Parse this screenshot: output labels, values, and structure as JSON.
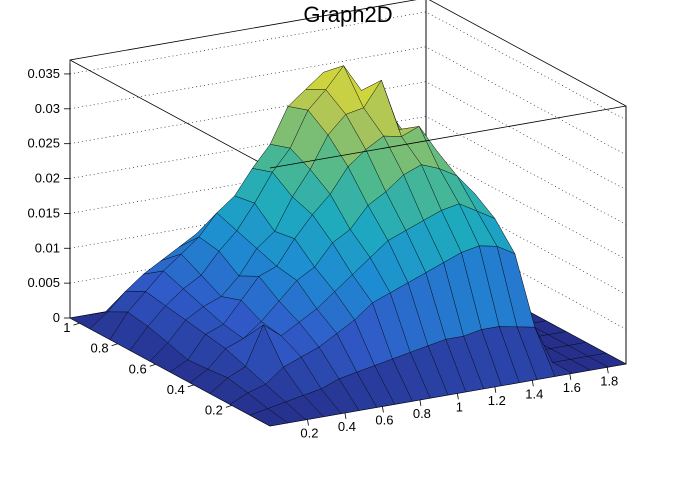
{
  "chart_data": {
    "type": "surface",
    "title": "Graph2D",
    "xlabel": "",
    "ylabel": "",
    "zlabel": "",
    "xlim": [
      0,
      1.9
    ],
    "ylim": [
      0,
      1.05
    ],
    "zlim": [
      0,
      0.037
    ],
    "x_ticks": [
      "0.2",
      "0.4",
      "0.6",
      "0.8",
      "1",
      "1.2",
      "1.4",
      "1.6",
      "1.8"
    ],
    "y_ticks": [
      "0.2",
      "0.4",
      "0.6",
      "0.8",
      "1"
    ],
    "z_ticks": [
      "0",
      "0.005",
      "0.01",
      "0.015",
      "0.02",
      "0.025",
      "0.03",
      "0.035"
    ],
    "x_tick_values": [
      0.2,
      0.4,
      0.6,
      0.8,
      1.0,
      1.2,
      1.4,
      1.6,
      1.8
    ],
    "y_tick_values": [
      0.2,
      0.4,
      0.6,
      0.8,
      1.0
    ],
    "z_tick_values": [
      0,
      0.005,
      0.01,
      0.015,
      0.02,
      0.025,
      0.03,
      0.035
    ],
    "grid": true,
    "colormap": "viridis",
    "colors": {
      "low": "#26308c",
      "mid": "#1fa5c0",
      "high": "#f5e81c"
    },
    "grid_x": [
      0.0,
      0.095,
      0.19,
      0.285,
      0.38,
      0.475,
      0.57,
      0.665,
      0.76,
      0.855,
      0.95,
      1.045,
      1.14,
      1.235,
      1.33,
      1.425,
      1.52,
      1.615,
      1.71,
      1.805,
      1.9
    ],
    "grid_y": [
      0.0,
      0.105,
      0.21,
      0.315,
      0.42,
      0.525,
      0.63,
      0.735,
      0.84,
      0.945,
      1.05
    ],
    "z": [
      [
        0.0,
        0.0,
        0.0,
        0.0,
        0.0,
        0.0,
        0.0,
        0.0,
        0.0,
        0.0,
        0.0
      ],
      [
        0.0,
        0.0005,
        0.0012,
        0.0018,
        0.0015,
        0.0013,
        0.0022,
        0.003,
        0.0035,
        0.002,
        0.0
      ],
      [
        0.0,
        0.001,
        0.002,
        0.003,
        0.004,
        0.0045,
        0.005,
        0.0055,
        0.006,
        0.0045,
        0.0
      ],
      [
        0.0,
        0.0015,
        0.004,
        0.0085,
        0.005,
        0.0055,
        0.0065,
        0.0075,
        0.0085,
        0.0065,
        0.0
      ],
      [
        0.0,
        0.002,
        0.005,
        0.0065,
        0.007,
        0.0085,
        0.0075,
        0.009,
        0.0105,
        0.008,
        0.0
      ],
      [
        0.0,
        0.003,
        0.006,
        0.008,
        0.0095,
        0.0115,
        0.01,
        0.012,
        0.0125,
        0.0095,
        0.0
      ],
      [
        0.0,
        0.0035,
        0.0075,
        0.0095,
        0.012,
        0.0125,
        0.0135,
        0.0145,
        0.0155,
        0.011,
        0.0
      ],
      [
        0.0,
        0.004,
        0.009,
        0.0115,
        0.0135,
        0.016,
        0.0155,
        0.018,
        0.0175,
        0.012,
        0.0
      ],
      [
        0.0,
        0.0045,
        0.011,
        0.0135,
        0.0165,
        0.019,
        0.02,
        0.022,
        0.021,
        0.0135,
        0.0
      ],
      [
        0.0,
        0.005,
        0.012,
        0.0155,
        0.018,
        0.0215,
        0.0235,
        0.025,
        0.024,
        0.016,
        0.0
      ],
      [
        0.0,
        0.0055,
        0.013,
        0.0175,
        0.021,
        0.025,
        0.028,
        0.03,
        0.029,
        0.019,
        0.0
      ],
      [
        0.0,
        0.006,
        0.014,
        0.0185,
        0.0225,
        0.027,
        0.0305,
        0.0325,
        0.031,
        0.02,
        0.0
      ],
      [
        0.0,
        0.006,
        0.015,
        0.0195,
        0.0245,
        0.0285,
        0.031,
        0.0355,
        0.033,
        0.021,
        0.0
      ],
      [
        0.0,
        0.0065,
        0.016,
        0.0205,
        0.0255,
        0.028,
        0.0345,
        0.0315,
        0.03,
        0.02,
        0.0
      ],
      [
        0.0,
        0.0065,
        0.0165,
        0.021,
        0.0245,
        0.029,
        0.027,
        0.03,
        0.0265,
        0.018,
        0.0
      ],
      [
        0.0,
        0.006,
        0.016,
        0.0195,
        0.023,
        0.025,
        0.0235,
        0.026,
        0.022,
        0.015,
        0.0
      ],
      [
        0.0,
        0.0055,
        0.0145,
        0.018,
        0.02,
        0.021,
        0.0195,
        0.021,
        0.0175,
        0.011,
        0.0
      ],
      [
        0.0,
        0.0,
        0.0,
        0.0,
        0.0,
        0.0,
        0.0,
        0.0,
        0.0,
        0.0,
        0.0
      ],
      [
        0.0,
        0.0,
        0.0,
        0.0,
        0.0,
        0.0,
        0.0,
        0.0,
        0.0,
        0.0,
        0.0
      ],
      [
        0.0,
        0.0,
        0.0,
        0.0,
        0.0,
        0.0,
        0.0,
        0.0,
        0.0,
        0.0,
        0.0
      ],
      [
        0.0,
        0.0,
        0.0,
        0.0,
        0.0,
        0.0,
        0.0,
        0.0,
        0.0,
        0.0,
        0.0
      ]
    ]
  }
}
